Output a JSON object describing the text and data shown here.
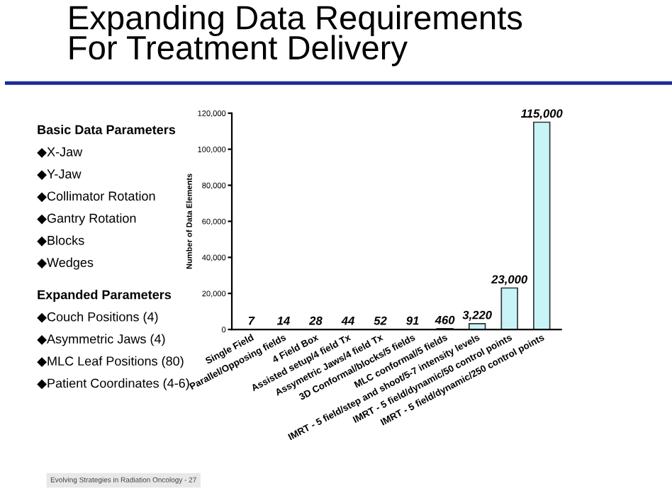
{
  "chart_data": {
    "type": "bar",
    "title": "Expanding Data Requirements\nFor Treatment Delivery",
    "ylabel": "Number of Data Elements",
    "categories": [
      "Single Field",
      "Parallel/Opposing fields",
      "4 Field Box",
      "Assisted setup/4 field Tx",
      "Assymetric Jaws/4 field Tx",
      "3D Conformal/blocks/5 fields",
      "MLC conformal/5 fields",
      "IMRT - 5 field/step and shoot/5-7 intensity levels",
      "IMRT - 5 field/dynamic/50 control points",
      "IMRT - 5 field/dynamic/250 control points"
    ],
    "values": [
      7,
      14,
      28,
      44,
      52,
      91,
      460,
      3220,
      23000,
      115000
    ],
    "value_labels": [
      "7",
      "14",
      "28",
      "44",
      "52",
      "91",
      "460",
      "3,220",
      "23,000",
      "115,000"
    ],
    "color": "#c8f4f8",
    "ylim": [
      0,
      120000
    ],
    "yticks": [
      {
        "value": 0,
        "label": "0"
      },
      {
        "value": 20000,
        "label": "20,000"
      },
      {
        "value": 40000,
        "label": "40,000"
      },
      {
        "value": 60000,
        "label": "60,000"
      },
      {
        "value": 80000,
        "label": "80,000"
      },
      {
        "value": 100000,
        "label": "100,000"
      },
      {
        "value": 120000,
        "label": "120,000"
      }
    ],
    "grid": false,
    "annotations": [
      "Basic Data Parameters",
      "◆X-Jaw",
      "◆Y-Jaw",
      "◆Collimator Rotation",
      "◆Gantry Rotation",
      "◆Blocks",
      "◆Wedges",
      "Expanded Parameters",
      "◆Couch Positions (4)",
      "◆Asymmetric Jaws (4)",
      "◆MLC Leaf Positions (80)",
      "◆Patient Coordinates (4-6)",
      "Evolving Strategies in Radiation Oncology - 27"
    ]
  }
}
